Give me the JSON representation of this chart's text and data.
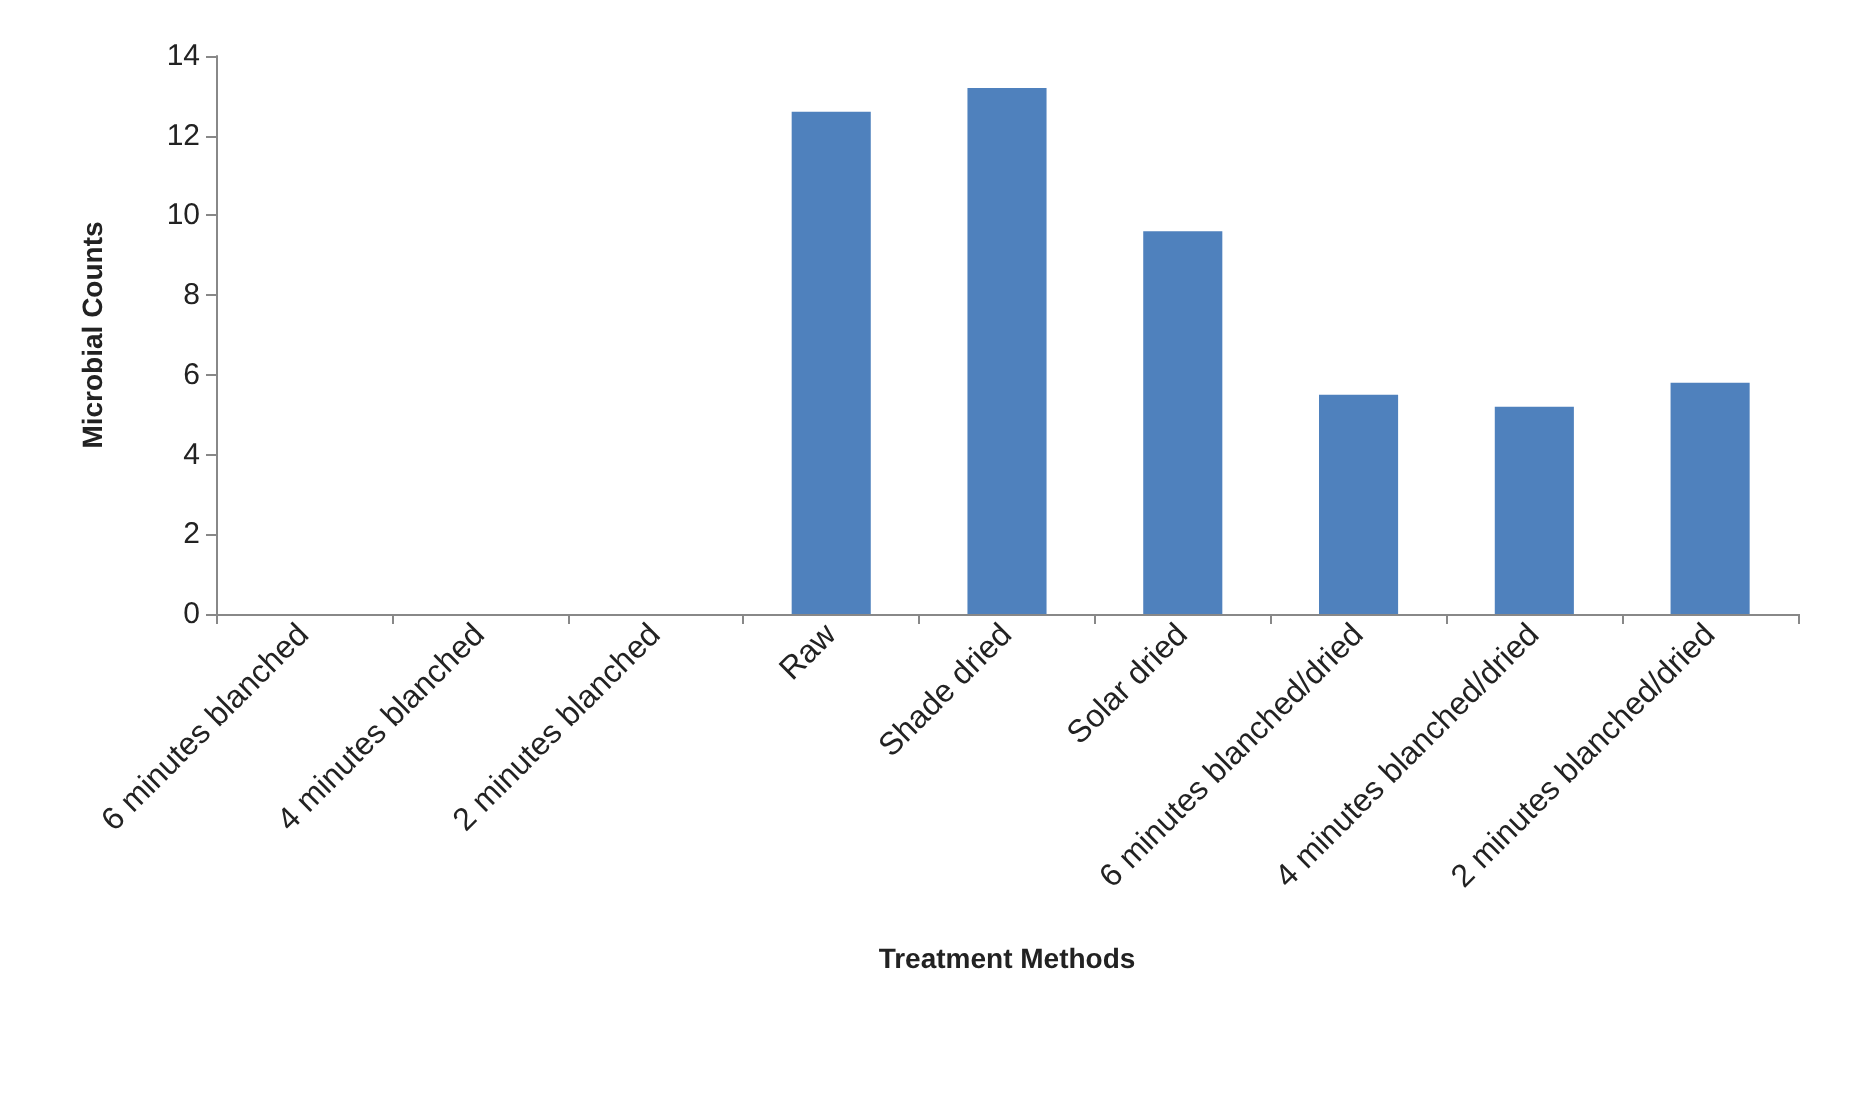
{
  "chart_data": {
    "type": "bar",
    "xlabel": "Treatment Methods",
    "ylabel": "Microbial Counts",
    "categories": [
      "6 minutes blanched",
      "4 minutes blanched",
      "2 minutes blanched",
      "Raw",
      "Shade dried",
      "Solar dried",
      "6 minutes blanched/dried",
      "4 minutes blanched/dried",
      "2 minutes blanched/dried"
    ],
    "values": [
      0,
      0,
      0,
      12.6,
      13.2,
      9.6,
      5.5,
      5.2,
      5.8
    ],
    "color": "#4f81bd",
    "ylim": [
      0,
      14
    ],
    "yticks": [
      0,
      2,
      4,
      6,
      8,
      10,
      12,
      14
    ],
    "grid": false
  }
}
